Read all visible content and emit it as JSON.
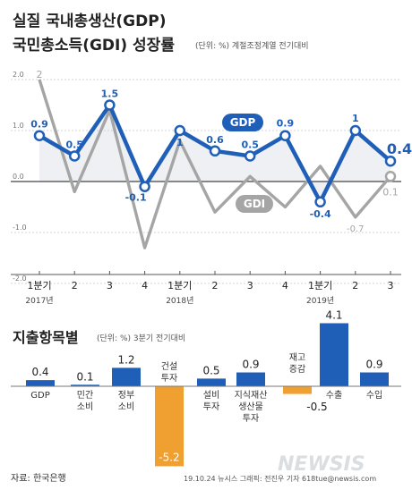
{
  "header": {
    "title_line1": "실질 국내총생산(GDP)",
    "title_line2": "국민총소득(GDI) 성장률",
    "unit_note": "(단위: %) 계절조정계열 전기대비"
  },
  "chart_data": [
    {
      "type": "line",
      "ylim": [
        -2.0,
        2.0
      ],
      "yticks": [
        "2.0",
        "1.0",
        "0.0",
        "-1.0",
        "-2.0"
      ],
      "ytick_values": [
        2,
        1,
        0,
        -1,
        -2
      ],
      "categories": [
        "1분기",
        "2",
        "3",
        "4",
        "1분기",
        "2",
        "3",
        "4",
        "1분기",
        "2",
        "3"
      ],
      "year_labels": [
        "2017년",
        "2018년",
        "2019년"
      ],
      "series": [
        {
          "name": "GDP",
          "values": [
            0.9,
            0.5,
            1.5,
            -0.1,
            1,
            0.6,
            0.5,
            0.9,
            -0.4,
            1,
            0.4
          ],
          "labels": [
            "0.9",
            "0.5",
            "1.5",
            "-0.1",
            "1",
            "0.6",
            "0.5",
            "0.9",
            "-0.4",
            "1",
            "0.4"
          ]
        },
        {
          "name": "GDI",
          "values": [
            2,
            -0.2,
            1.4,
            -1.3,
            0.8,
            -0.6,
            0.1,
            -0.5,
            0.3,
            -0.7,
            0.1
          ],
          "labels": [
            "2",
            "",
            "",
            "",
            "",
            "",
            "",
            "",
            "",
            "-0.7",
            "0.1"
          ]
        }
      ]
    },
    {
      "type": "bar",
      "title": "지출항목별",
      "unit_note": "(단위: %) 3분기 전기대비",
      "categories": [
        "GDP",
        "민간\n소비",
        "정부\n소비",
        "건설\n투자",
        "설비\n투자",
        "지식재산\n생산물\n투자",
        "재고\n증감",
        "수출",
        "수입"
      ],
      "values": [
        0.4,
        0.1,
        1.2,
        -5.2,
        0.5,
        0.9,
        -0.5,
        4.1,
        0.9
      ],
      "labels": [
        "0.4",
        "0.1",
        "1.2",
        "-5.2",
        "0.5",
        "0.9",
        "-0.5",
        "4.1",
        "0.9"
      ]
    }
  ],
  "footer": {
    "source": "자료: 한국은행",
    "credit": "19.10.24 뉴시스 그래픽: 전진우 기자 618tue@newsis.com",
    "watermark": "NEWSIS"
  },
  "colors": {
    "blue": "#1f5fb8",
    "gray": "#a5a5a5",
    "orange": "#f0a030",
    "fill": "#eef0f3"
  }
}
